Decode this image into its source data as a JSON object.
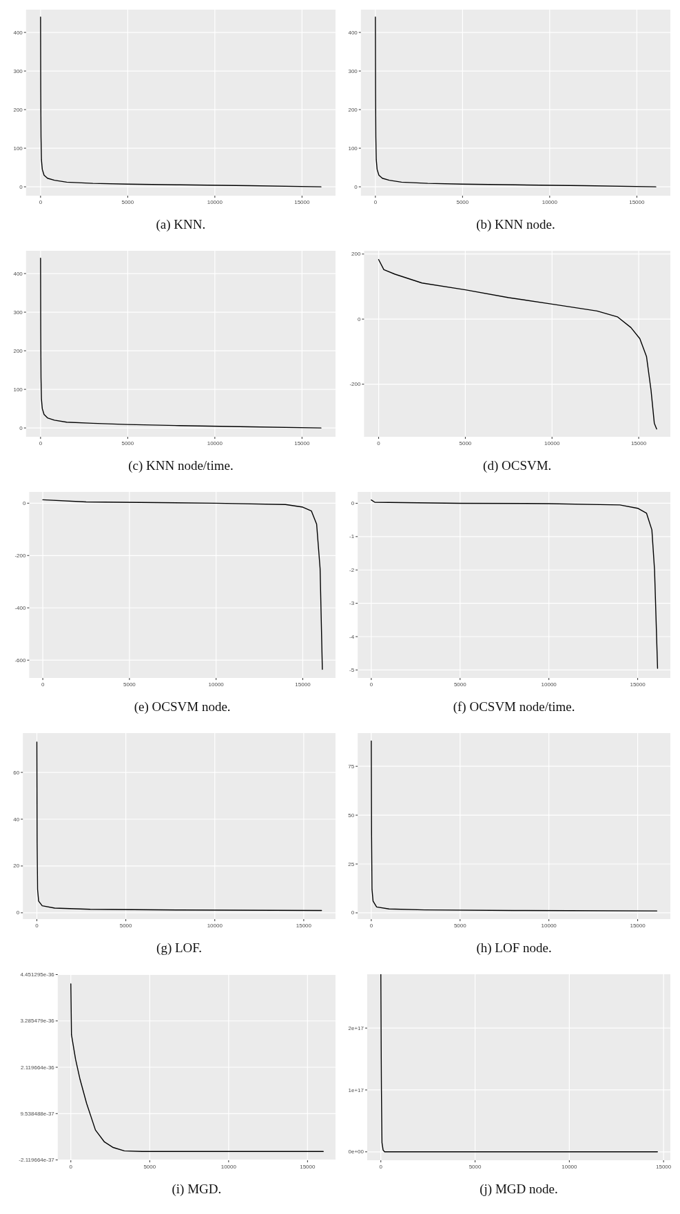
{
  "chart_data": [
    {
      "type": "line",
      "title": "(a) KNN.",
      "grid": true,
      "xlim": [
        -833,
        16923
      ],
      "ylim": [
        -23,
        459
      ],
      "xticks": [
        0,
        5000,
        10000,
        15000
      ],
      "yticks": [
        0,
        100,
        200,
        300,
        400
      ],
      "series": [
        {
          "color": "#000000",
          "x": [
            0,
            10,
            25,
            50,
            100,
            200,
            400,
            800,
            1500,
            3000,
            5000,
            8000,
            12000,
            16090
          ],
          "values": [
            440,
            250,
            130,
            70,
            45,
            30,
            22,
            17,
            12,
            9,
            7,
            5,
            3,
            0
          ]
        }
      ]
    },
    {
      "type": "line",
      "title": "(b) KNN node.",
      "grid": true,
      "xlim": [
        -833,
        16923
      ],
      "ylim": [
        -23,
        459
      ],
      "xticks": [
        0,
        5000,
        10000,
        15000
      ],
      "yticks": [
        0,
        100,
        200,
        300,
        400
      ],
      "series": [
        {
          "color": "#000000",
          "x": [
            0,
            10,
            25,
            50,
            100,
            200,
            400,
            800,
            1500,
            3000,
            5000,
            8000,
            12000,
            16090
          ],
          "values": [
            440,
            250,
            130,
            70,
            45,
            30,
            22,
            17,
            12,
            9,
            7,
            5,
            3,
            0
          ]
        }
      ]
    },
    {
      "type": "line",
      "title": "(c) KNN node/time.",
      "grid": true,
      "xlim": [
        -833,
        16923
      ],
      "ylim": [
        -23,
        459
      ],
      "xticks": [
        0,
        5000,
        10000,
        15000
      ],
      "yticks": [
        0,
        100,
        200,
        300,
        400
      ],
      "series": [
        {
          "color": "#000000",
          "x": [
            0,
            10,
            25,
            50,
            100,
            200,
            400,
            800,
            1500,
            3000,
            5000,
            8000,
            12000,
            16090
          ],
          "values": [
            440,
            250,
            130,
            75,
            50,
            35,
            26,
            20,
            15,
            12,
            9,
            6,
            3,
            0
          ]
        }
      ]
    },
    {
      "type": "line",
      "title": "(d) OCSVM.",
      "grid": true,
      "xlim": [
        -842,
        16826
      ],
      "ylim": [
        -362,
        210
      ],
      "xticks": [
        0,
        5000,
        10000,
        15000
      ],
      "yticks": [
        -200,
        0,
        200
      ],
      "series": [
        {
          "color": "#000000",
          "x": [
            0,
            300,
            945,
            2500,
            5000,
            7500,
            10000,
            12600,
            13770,
            14550,
            15065,
            15450,
            15710,
            15900,
            16036
          ],
          "values": [
            183,
            152,
            138,
            111,
            90,
            66,
            46,
            25,
            7,
            -26,
            -60,
            -115,
            -218,
            -320,
            -338
          ]
        }
      ]
    },
    {
      "type": "line",
      "title": "(e) OCSVM node.",
      "grid": true,
      "xlim": [
        -784,
        16890
      ],
      "ylim": [
        -668,
        43
      ],
      "xticks": [
        0,
        5000,
        10000,
        15000
      ],
      "yticks": [
        -600,
        -400,
        -200,
        0
      ],
      "series": [
        {
          "color": "#000000",
          "x": [
            0,
            2500,
            10000,
            14000,
            15000,
            15500,
            15800,
            16000,
            16130
          ],
          "values": [
            13,
            5,
            0,
            -5,
            -15,
            -30,
            -80,
            -250,
            -635
          ]
        }
      ]
    },
    {
      "type": "line",
      "title": "(f) OCSVM node/time.",
      "grid": true,
      "xlim": [
        -765,
        16840
      ],
      "ylim": [
        -5.24,
        0.34
      ],
      "xticks": [
        0,
        5000,
        10000,
        15000
      ],
      "yticks": [
        -5,
        -4,
        -3,
        -2,
        -1,
        0
      ],
      "series": [
        {
          "color": "#000000",
          "x": [
            0,
            200,
            5000,
            10000,
            14000,
            15000,
            15500,
            15800,
            15950,
            16120
          ],
          "values": [
            0.1,
            0.03,
            0,
            -0.01,
            -0.05,
            -0.15,
            -0.3,
            -0.8,
            -2,
            -4.95
          ]
        }
      ]
    },
    {
      "type": "line",
      "title": "(g) LOF.",
      "grid": true,
      "xlim": [
        -786,
        16786
      ],
      "ylim": [
        -2.7,
        76.8
      ],
      "xticks": [
        0,
        5000,
        10000,
        15000
      ],
      "yticks": [
        0,
        20,
        40,
        60
      ],
      "series": [
        {
          "color": "#000000",
          "x": [
            0,
            15,
            40,
            100,
            300,
            1000,
            3000,
            8000,
            16000
          ],
          "values": [
            73,
            30,
            10,
            5,
            3,
            2,
            1.5,
            1.2,
            1
          ]
        }
      ]
    },
    {
      "type": "line",
      "title": "(h) LOF node.",
      "grid": true,
      "xlim": [
        -765,
        16840
      ],
      "ylim": [
        -3.2,
        92
      ],
      "xticks": [
        0,
        5000,
        10000,
        15000
      ],
      "yticks": [
        0,
        25,
        50,
        75
      ],
      "series": [
        {
          "color": "#000000",
          "x": [
            0,
            15,
            40,
            100,
            300,
            1000,
            3000,
            8000,
            16080
          ],
          "values": [
            88,
            40,
            12,
            6,
            3,
            2,
            1.5,
            1.2,
            1
          ]
        }
      ]
    },
    {
      "type": "line",
      "title": "(i) MGD.",
      "grid": true,
      "xlim": [
        -830,
        16775
      ],
      "ylim": [
        -2.2e-37,
        4.46e-36
      ],
      "xticks": [
        0,
        5000,
        10000,
        15000
      ],
      "yticks": [
        {
          "value": -2.119664e-37,
          "label": "-2.119664e-37"
        },
        {
          "value": 9.538488e-37,
          "label": "9.538488e-37"
        },
        {
          "value": 2.119664e-36,
          "label": "2.119664e-36"
        },
        {
          "value": 3.285479e-36,
          "label": "3.285479e-36"
        },
        {
          "value": 4.451295e-36,
          "label": "4.451295e-36"
        }
      ],
      "series": [
        {
          "color": "#000000",
          "x": [
            0,
            40,
            300,
            580,
            1000,
            1560,
            2130,
            2690,
            3390,
            4520,
            16000
          ],
          "values": [
            4.22e-36,
            2.94e-36,
            2.32e-36,
            1.82e-36,
            1.21e-36,
            5.4e-37,
            2.4e-37,
            1e-37,
            1.7e-38,
            0,
            0
          ]
        }
      ]
    },
    {
      "type": "line",
      "title": "(j) MGD node.",
      "grid": true,
      "xlim": [
        -723,
        15360
      ],
      "ylim": [
        -1.36e+16,
        2.87e+17
      ],
      "xticks": [
        0,
        5000,
        10000,
        15000
      ],
      "yticks": [
        {
          "value": 0,
          "label": "0e+00"
        },
        {
          "value": 1e+17,
          "label": "1e+17"
        },
        {
          "value": 2e+17,
          "label": "2e+17"
        }
      ],
      "series": [
        {
          "color": "#000000",
          "x": [
            0,
            20,
            30,
            60,
            120,
            200,
            14675
          ],
          "values": [
            2.87e+17,
            1.5e+17,
            1e+17,
            1.5e+16,
            3000000000000000.0,
            0,
            0
          ]
        }
      ]
    }
  ]
}
